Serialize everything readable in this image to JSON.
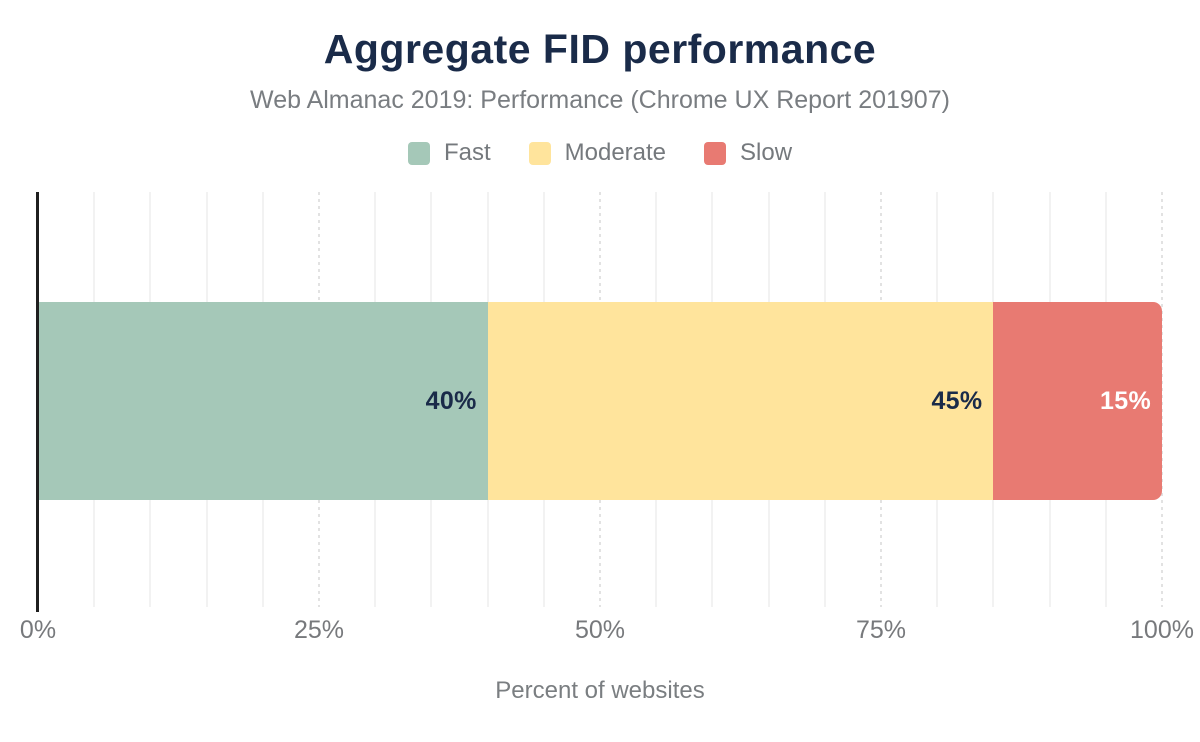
{
  "chart_data": {
    "type": "bar",
    "stacked": true,
    "orientation": "horizontal",
    "title": "Aggregate FID performance",
    "subtitle": "Web Almanac 2019: Performance (Chrome UX Report 201907)",
    "xlabel": "Percent of websites",
    "xlim": [
      0,
      100
    ],
    "grid": true,
    "minor_grid_step_percent": 5,
    "major_grid_step_percent": 25,
    "legend_position": "top",
    "x_ticks": [
      {
        "value": 0,
        "label": "0%"
      },
      {
        "value": 25,
        "label": "25%"
      },
      {
        "value": 50,
        "label": "50%"
      },
      {
        "value": 75,
        "label": "75%"
      },
      {
        "value": 100,
        "label": "100%"
      }
    ],
    "series": [
      {
        "name": "Fast",
        "value": 40,
        "label": "40%",
        "color": "#a5c8b8",
        "label_color": "#1a2b49"
      },
      {
        "name": "Moderate",
        "value": 45,
        "label": "45%",
        "color": "#ffe49c",
        "label_color": "#1a2b49"
      },
      {
        "name": "Slow",
        "value": 15,
        "label": "15%",
        "color": "#e87a72",
        "label_color": "#ffffff"
      }
    ]
  },
  "colors": {
    "title": "#1a2b49",
    "subtitle_gray": "#797d81",
    "axis_line": "#1f1f1f",
    "minor_gridline": "#f2f2f2",
    "major_gridline": "#e2e2e2",
    "background": "#ffffff"
  }
}
